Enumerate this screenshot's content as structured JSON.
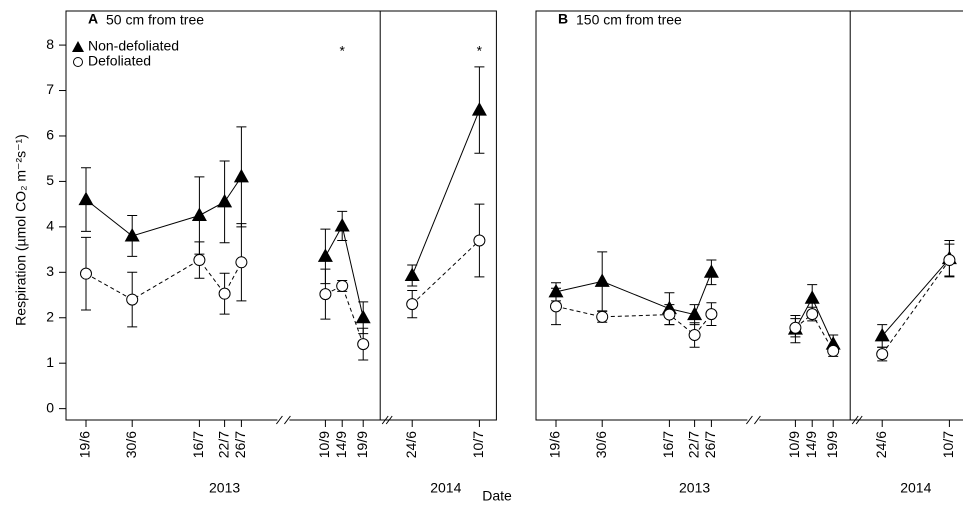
{
  "y_label": "Respiration (µmol CO₂ m⁻²s⁻¹)",
  "x_label": "Date",
  "chart_data": [
    {
      "type": "line",
      "label": "A",
      "title": "50 cm from tree",
      "ylim": [
        -0.25,
        8.75
      ],
      "yticks": [
        0,
        1,
        2,
        3,
        4,
        5,
        6,
        7,
        8
      ],
      "legend": true,
      "years": [
        "2013",
        "2014"
      ],
      "categories": [
        [
          "19/6",
          "30/6",
          "16/7",
          "22/7",
          "26/7",
          "10/9",
          "14/9",
          "19/9"
        ],
        [
          "24/6",
          "10/7"
        ]
      ],
      "annotations": [
        [
          null,
          null,
          null,
          null,
          null,
          null,
          "*",
          null
        ],
        [
          null,
          "*"
        ]
      ],
      "series": [
        {
          "name": "Non-defoliated",
          "color": "#000000",
          "marker": "triangle",
          "dash": false,
          "values": [
            [
              4.6,
              3.8,
              4.25,
              4.55,
              5.1,
              3.35,
              4.02,
              2.0
            ],
            [
              2.93,
              6.57
            ]
          ],
          "errors": [
            [
              0.7,
              0.45,
              0.85,
              0.9,
              1.1,
              0.6,
              0.32,
              0.35
            ],
            [
              0.23,
              0.95
            ]
          ]
        },
        {
          "name": "Defoliated",
          "color": "#000000",
          "marker": "circle",
          "dash": true,
          "values": [
            [
              2.97,
              2.4,
              3.27,
              2.53,
              3.22,
              2.52,
              2.7,
              1.42
            ],
            [
              2.3,
              3.7
            ]
          ],
          "errors": [
            [
              0.8,
              0.6,
              0.4,
              0.45,
              0.85,
              0.55,
              0.12,
              0.35
            ],
            [
              0.3,
              0.8
            ]
          ]
        }
      ]
    },
    {
      "type": "line",
      "label": "B",
      "title": "150 cm from tree",
      "ylim": [
        -0.25,
        8.75
      ],
      "legend": false,
      "years": [
        "2013",
        "2014"
      ],
      "categories": [
        [
          "19/6",
          "30/6",
          "16/7",
          "22/7",
          "26/7",
          "10/9",
          "14/9",
          "19/9"
        ],
        [
          "24/6",
          "10/7"
        ]
      ],
      "series": [
        {
          "color": "#000000",
          "marker": "triangle",
          "dash": false,
          "values": [
            [
              2.57,
              2.8,
              2.2,
              2.07,
              3.0,
              1.75,
              2.43,
              1.42
            ],
            [
              1.6,
              3.3
            ]
          ],
          "errors": [
            [
              0.2,
              0.65,
              0.35,
              0.22,
              0.27,
              0.3,
              0.3,
              0.2
            ],
            [
              0.25,
              0.4
            ]
          ]
        },
        {
          "color": "#000000",
          "marker": "circle",
          "dash": true,
          "values": [
            [
              2.25,
              2.02,
              2.07,
              1.62,
              2.08,
              1.78,
              2.08,
              1.27
            ],
            [
              1.2,
              3.27
            ]
          ],
          "errors": [
            [
              0.4,
              0.12,
              0.22,
              0.27,
              0.25,
              0.2,
              0.15,
              0.12
            ],
            [
              0.15,
              0.35
            ]
          ]
        }
      ]
    }
  ]
}
